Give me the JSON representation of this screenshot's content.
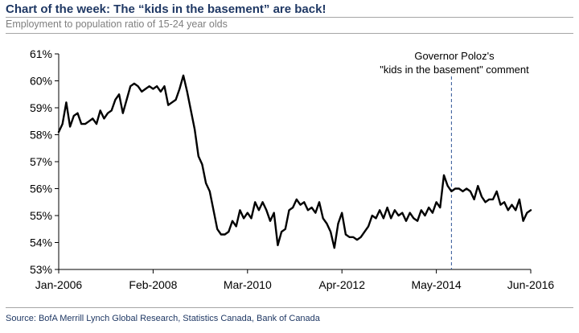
{
  "header": {
    "title": "Chart of the week: The “kids in the basement” are back!",
    "subtitle": "Employment to population ratio of 15-24 year olds"
  },
  "footer": {
    "source": "Source: BofA Merrill Lynch Global Research, Statistics Canada, Bank of Canada"
  },
  "colors": {
    "title": "#1f3864",
    "line": "#000000",
    "axis": "#000000",
    "marker": "#2f5597",
    "subtitle": "#7f7f7f"
  },
  "chart_data": {
    "type": "line",
    "title": "",
    "xlabel": "",
    "ylabel": "",
    "grid": false,
    "legend": "none",
    "ylim": [
      53,
      61
    ],
    "xlim": [
      "2006-01",
      "2016-06"
    ],
    "y_tick_labels": [
      "53%",
      "54%",
      "55%",
      "56%",
      "57%",
      "58%",
      "59%",
      "60%",
      "61%"
    ],
    "x_tick_labels": [
      "Jan-2006",
      "Feb-2008",
      "Mar-2010",
      "Apr-2012",
      "May-2014",
      "Jun-2016"
    ],
    "annotation": {
      "date": "2014-09",
      "lines": [
        "Governor Poloz's",
        "\"kids in the basement\" comment"
      ]
    },
    "series": [
      {
        "x": [
          "2006-01",
          "2006-02",
          "2006-03",
          "2006-04",
          "2006-05",
          "2006-06",
          "2006-07",
          "2006-08",
          "2006-09",
          "2006-10",
          "2006-11",
          "2006-12",
          "2007-01",
          "2007-02",
          "2007-03",
          "2007-04",
          "2007-05",
          "2007-06",
          "2007-07",
          "2007-08",
          "2007-09",
          "2007-10",
          "2007-11",
          "2007-12",
          "2008-01",
          "2008-02",
          "2008-03",
          "2008-04",
          "2008-05",
          "2008-06",
          "2008-07",
          "2008-08",
          "2008-09",
          "2008-10",
          "2008-11",
          "2008-12",
          "2009-01",
          "2009-02",
          "2009-03",
          "2009-04",
          "2009-05",
          "2009-06",
          "2009-07",
          "2009-08",
          "2009-09",
          "2009-10",
          "2009-11",
          "2009-12",
          "2010-01",
          "2010-02",
          "2010-03",
          "2010-04",
          "2010-05",
          "2010-06",
          "2010-07",
          "2010-08",
          "2010-09",
          "2010-10",
          "2010-11",
          "2010-12",
          "2011-01",
          "2011-02",
          "2011-03",
          "2011-04",
          "2011-05",
          "2011-06",
          "2011-07",
          "2011-08",
          "2011-09",
          "2011-10",
          "2011-11",
          "2011-12",
          "2012-01",
          "2012-02",
          "2012-03",
          "2012-04",
          "2012-05",
          "2012-06",
          "2012-07",
          "2012-08",
          "2012-09",
          "2012-10",
          "2012-11",
          "2012-12",
          "2013-01",
          "2013-02",
          "2013-03",
          "2013-04",
          "2013-05",
          "2013-06",
          "2013-07",
          "2013-08",
          "2013-09",
          "2013-10",
          "2013-11",
          "2013-12",
          "2014-01",
          "2014-02",
          "2014-03",
          "2014-04",
          "2014-05",
          "2014-06",
          "2014-07",
          "2014-08",
          "2014-09",
          "2014-10",
          "2014-11",
          "2014-12",
          "2015-01",
          "2015-02",
          "2015-03",
          "2015-04",
          "2015-05",
          "2015-06",
          "2015-07",
          "2015-08",
          "2015-09",
          "2015-10",
          "2015-11",
          "2015-12",
          "2016-01",
          "2016-02",
          "2016-03",
          "2016-04",
          "2016-05",
          "2016-06"
        ],
        "values": [
          58.1,
          58.4,
          59.2,
          58.3,
          58.7,
          58.8,
          58.4,
          58.4,
          58.5,
          58.6,
          58.4,
          58.9,
          58.6,
          58.8,
          58.9,
          59.3,
          59.5,
          58.8,
          59.3,
          59.8,
          59.9,
          59.8,
          59.6,
          59.7,
          59.8,
          59.7,
          59.8,
          59.6,
          59.8,
          59.1,
          59.2,
          59.3,
          59.7,
          60.2,
          59.6,
          58.9,
          58.2,
          57.2,
          56.9,
          56.2,
          55.9,
          55.2,
          54.5,
          54.3,
          54.3,
          54.4,
          54.8,
          54.6,
          55.2,
          54.9,
          55.1,
          54.9,
          55.5,
          55.2,
          55.5,
          55.2,
          54.8,
          55.1,
          53.9,
          54.4,
          54.5,
          55.2,
          55.3,
          55.6,
          55.4,
          55.5,
          55.2,
          55.3,
          55.1,
          55.5,
          54.9,
          54.7,
          54.4,
          53.8,
          54.7,
          55.1,
          54.3,
          54.2,
          54.2,
          54.1,
          54.2,
          54.4,
          54.6,
          55.0,
          54.9,
          55.2,
          54.9,
          55.3,
          54.9,
          55.2,
          55.0,
          55.1,
          54.8,
          55.1,
          54.9,
          54.8,
          55.2,
          55.0,
          55.3,
          55.1,
          55.5,
          55.3,
          56.5,
          56.1,
          55.9,
          56.0,
          56.0,
          55.9,
          56.0,
          55.9,
          55.6,
          56.1,
          55.7,
          55.5,
          55.6,
          55.6,
          55.9,
          55.4,
          55.5,
          55.2,
          55.4,
          55.2,
          55.6,
          54.8,
          55.1,
          55.2
        ]
      }
    ]
  }
}
